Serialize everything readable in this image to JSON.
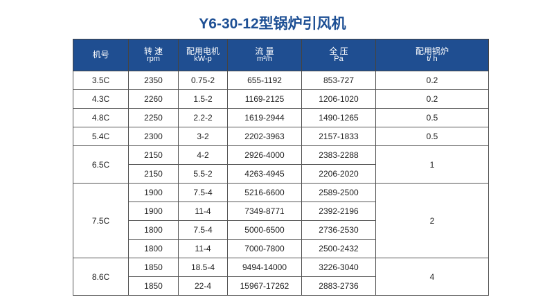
{
  "title": "Y6-30-12型锅炉引风机",
  "headers": [
    {
      "main": "机号",
      "sub": ""
    },
    {
      "main": "转 速",
      "sub": "rpm"
    },
    {
      "main": "配用电机",
      "sub": "kW-p"
    },
    {
      "main": "流 量",
      "sub": "m³/h"
    },
    {
      "main": "全 压",
      "sub": "Pa"
    },
    {
      "main": "配用锅炉",
      "sub": "t/ h"
    }
  ],
  "groups": [
    {
      "model": "3.5C",
      "boiler": "0.2",
      "rows": [
        [
          "2350",
          "0.75-2",
          "655-1192",
          "853-727"
        ]
      ]
    },
    {
      "model": "4.3C",
      "boiler": "0.2",
      "rows": [
        [
          "2260",
          "1.5-2",
          "1169-2125",
          "1206-1020"
        ]
      ]
    },
    {
      "model": "4.8C",
      "boiler": "0.5",
      "rows": [
        [
          "2250",
          "2.2-2",
          "1619-2944",
          "1490-1265"
        ]
      ]
    },
    {
      "model": "5.4C",
      "boiler": "0.5",
      "rows": [
        [
          "2300",
          "3-2",
          "2202-3963",
          "2157-1833"
        ]
      ]
    },
    {
      "model": "6.5C",
      "boiler": "1",
      "rows": [
        [
          "2150",
          "4-2",
          "2926-4000",
          "2383-2288"
        ],
        [
          "2150",
          "5.5-2",
          "4263-4945",
          "2206-2020"
        ]
      ]
    },
    {
      "model": "7.5C",
      "boiler": "2",
      "rows": [
        [
          "1900",
          "7.5-4",
          "5216-6600",
          "2589-2500"
        ],
        [
          "1900",
          "11-4",
          "7349-8771",
          "2392-2196"
        ],
        [
          "1800",
          "7.5-4",
          "5000-6500",
          "2736-2530"
        ],
        [
          "1800",
          "11-4",
          "7000-7800",
          "2500-2432"
        ]
      ]
    },
    {
      "model": "8.6C",
      "boiler": "4",
      "rows": [
        [
          "1850",
          "18.5-4",
          "9494-14000",
          "3226-3040"
        ],
        [
          "1850",
          "22-4",
          "15967-17262",
          "2883-2736"
        ]
      ]
    }
  ]
}
